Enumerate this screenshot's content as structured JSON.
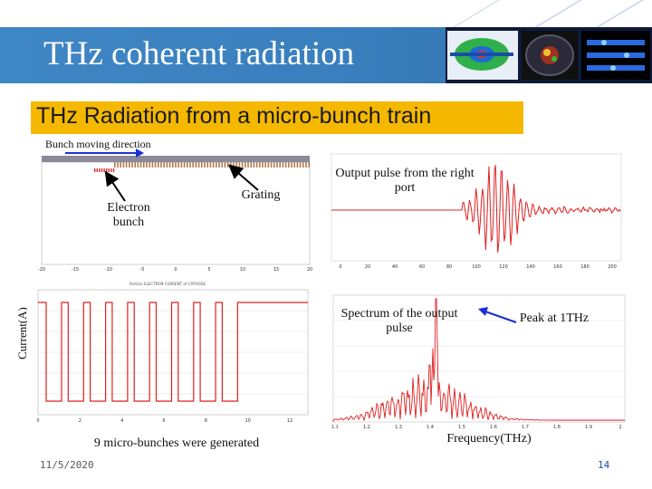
{
  "slide": {
    "title": "THz coherent radiation",
    "subtitle": "THz Radiation from a micro-bunch train",
    "date": "11/5/2020",
    "page_number": "14"
  },
  "annotations": {
    "bunch_direction": "Bunch moving direction",
    "electron_bunch": "Electron bunch",
    "grating": "Grating",
    "output_pulse": "Output pulse from the right port",
    "spectrum": "Spectrum of the output pulse",
    "peak": "Peak at 1THz",
    "current_axis": "Current(A)",
    "microbunches": "9 micro-bunches were generated",
    "frequency_axis": "Frequency(THz)"
  },
  "colors": {
    "title_band": "#3a7fbd",
    "subtitle_bg": "#f5b800",
    "signal_red": "#e02020",
    "arrow_blue": "#1a2fd0",
    "grating_brown": "#b07a50"
  },
  "chart_data": [
    {
      "type": "line",
      "panel": "bunch_current",
      "pulses": 9,
      "x_ticks": [
        "0",
        "2",
        "4",
        "6",
        "8",
        "10",
        "12"
      ]
    },
    {
      "type": "line",
      "panel": "output_pulse",
      "x_ticks": [
        "0",
        "20",
        "40",
        "60",
        "80",
        "100",
        "120",
        "140",
        "160",
        "180",
        "200"
      ]
    },
    {
      "type": "line",
      "panel": "spectrum",
      "x_ticks": [
        "1.1",
        "1.2",
        "1.3",
        "1.4",
        "1.5",
        "1.6",
        "1.7",
        "1.8",
        "1.9",
        "2"
      ]
    }
  ]
}
